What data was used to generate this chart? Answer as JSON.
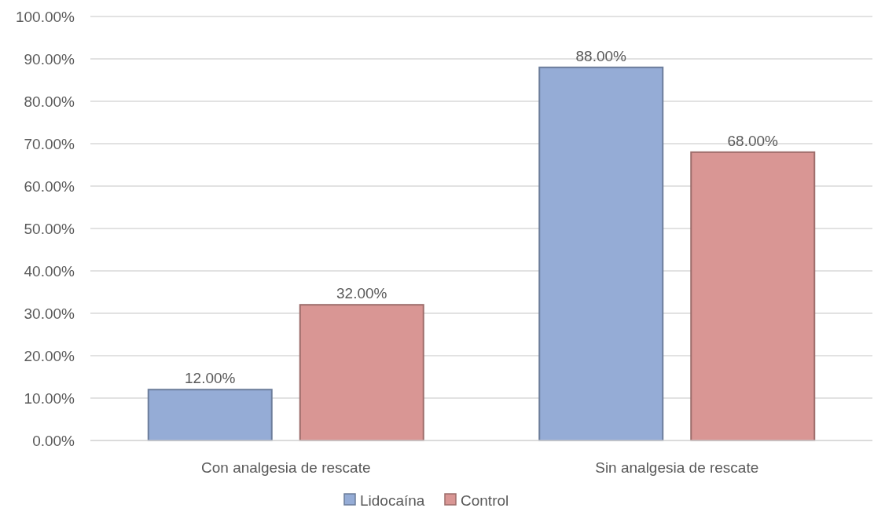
{
  "chart_data": {
    "type": "bar",
    "categories": [
      "Con analgesia de rescate",
      "Sin analgesia de rescate"
    ],
    "series": [
      {
        "name": "Lidocaína",
        "color": "#95acd6",
        "values": [
          12,
          88
        ],
        "value_labels": [
          "12.00%",
          "88.00%"
        ]
      },
      {
        "name": "Control",
        "color": "#d99694",
        "values": [
          32,
          68
        ],
        "value_labels": [
          "32.00%",
          "68.00%"
        ]
      }
    ],
    "ylim": [
      0,
      100
    ],
    "yticks": [
      {
        "value": 0,
        "label": "0.00%"
      },
      {
        "value": 10,
        "label": "10.00%"
      },
      {
        "value": 20,
        "label": "20.00%"
      },
      {
        "value": 30,
        "label": "30.00%"
      },
      {
        "value": 40,
        "label": "40.00%"
      },
      {
        "value": 50,
        "label": "50.00%"
      },
      {
        "value": 60,
        "label": "60.00%"
      },
      {
        "value": 70,
        "label": "70.00%"
      },
      {
        "value": 80,
        "label": "80.00%"
      },
      {
        "value": 90,
        "label": "90.00%"
      },
      {
        "value": 100,
        "label": "100.00%"
      }
    ],
    "grid": "y",
    "legend": "bottom"
  }
}
